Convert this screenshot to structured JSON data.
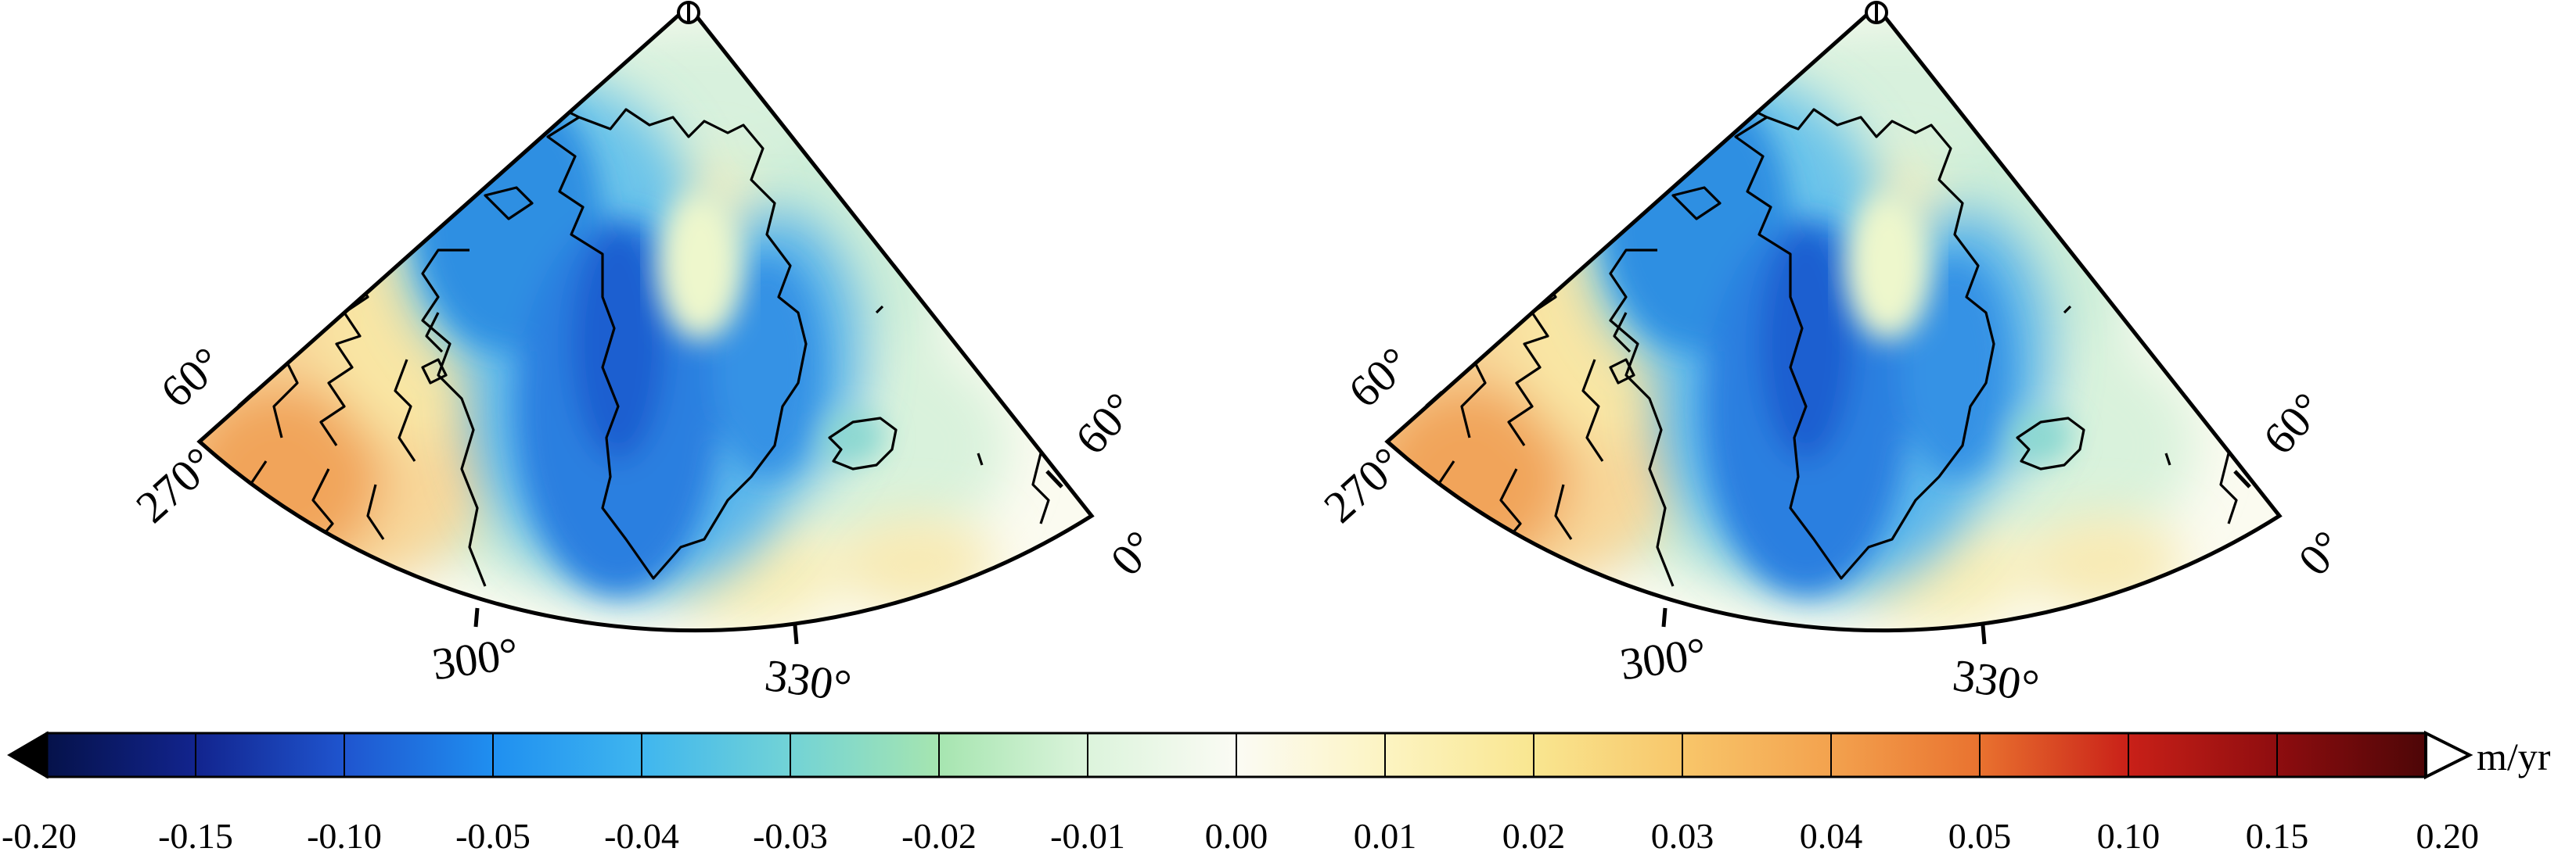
{
  "maps": [
    {
      "name": "left",
      "lat_ticks": [
        "60°",
        "60°"
      ],
      "lon_ticks": [
        "270°",
        "300°",
        "330°",
        "0°"
      ]
    },
    {
      "name": "right",
      "lat_ticks": [
        "60°",
        "60°"
      ],
      "lon_ticks": [
        "270°",
        "300°",
        "330°",
        "0°"
      ]
    }
  ],
  "colorbar": {
    "unit": "m/yr",
    "tick_labels": [
      "-0.20",
      "-0.15",
      "-0.10",
      "-0.05",
      "-0.04",
      "-0.03",
      "-0.02",
      "-0.01",
      "0.00",
      "0.01",
      "0.02",
      "0.03",
      "0.04",
      "0.05",
      "0.10",
      "0.15",
      "0.20"
    ],
    "colors": [
      "#05124a",
      "#12248e",
      "#1f55cf",
      "#1f8ff0",
      "#3fb6ef",
      "#72d3d6",
      "#a6e5b0",
      "#dcf4dc",
      "#fbfbf4",
      "#fcf4c2",
      "#f9e690",
      "#f8c66a",
      "#f3a24e",
      "#e9722f",
      "#c92018",
      "#8e0d0f",
      "#4d0607"
    ],
    "extend_low_color": "#000000",
    "extend_high_color": "#ffffff"
  }
}
